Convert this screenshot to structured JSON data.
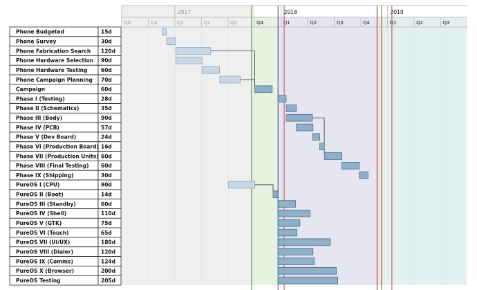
{
  "chart_data": {
    "type": "gantt",
    "timeline": {
      "years": [
        {
          "label": "2017",
          "faded": true
        },
        {
          "label": "2018",
          "faded": false
        },
        {
          "label": "2019",
          "faded": false
        }
      ],
      "quarters": [
        {
          "label": "Q3",
          "year": 2016,
          "q": 3,
          "faded": true
        },
        {
          "label": "Q4",
          "year": 2016,
          "q": 4,
          "faded": true
        },
        {
          "label": "Q1",
          "year": 2017,
          "q": 1,
          "faded": true
        },
        {
          "label": "Q2",
          "year": 2017,
          "q": 2,
          "faded": true
        },
        {
          "label": "Q3",
          "year": 2017,
          "q": 3,
          "faded": true
        },
        {
          "label": "Q4",
          "year": 2017,
          "q": 4,
          "faded": false
        },
        {
          "label": "Q1",
          "year": 2018,
          "q": 1,
          "faded": false
        },
        {
          "label": "Q2",
          "year": 2018,
          "q": 2,
          "faded": false
        },
        {
          "label": "Q3",
          "year": 2018,
          "q": 3,
          "faded": false
        },
        {
          "label": "Q4",
          "year": 2018,
          "q": 4,
          "faded": false
        },
        {
          "label": "Q1",
          "year": 2019,
          "q": 1,
          "faded": false
        },
        {
          "label": "Q2",
          "year": 2019,
          "q": 2,
          "faded": false
        },
        {
          "label": "Q3",
          "year": 2019,
          "q": 3,
          "faded": false
        }
      ],
      "markers": [
        {
          "date": "2017-09-20",
          "color": "#3a9a3a"
        },
        {
          "date": "2017-12-20",
          "color": "#3a4aa0"
        },
        {
          "date": "2018-01-10",
          "color": "#d04040"
        },
        {
          "date": "2018-11-25",
          "color": "#b02020"
        },
        {
          "date": "2018-12-10",
          "color": "#3a9a3a"
        },
        {
          "date": "2019-01-15",
          "color": "#d04040"
        }
      ],
      "regions": [
        {
          "start": "2017-09-20",
          "end": "2017-12-20",
          "color": "#e8f2e0"
        },
        {
          "start": "2017-12-20",
          "end": "2018-11-25",
          "color": "#e6e6f2"
        },
        {
          "start": "2018-11-25",
          "end": "2018-12-20",
          "color": "#f6e2e2"
        },
        {
          "start": "2018-12-20",
          "end": "2019-09-30",
          "color": "#e2f0f0"
        }
      ]
    },
    "tasks": [
      {
        "name": "Phone Budgeted",
        "duration": "15d",
        "start": "2016-11-17",
        "days": 15,
        "faded": true
      },
      {
        "name": "Phone Survey",
        "duration": "30d",
        "start": "2016-12-03",
        "days": 30,
        "faded": true
      },
      {
        "name": "Phone Fabrication Search",
        "duration": "120d",
        "start": "2017-01-03",
        "days": 120,
        "faded": true
      },
      {
        "name": "Phone Hardware Selection",
        "duration": "90d",
        "start": "2017-01-03",
        "days": 90,
        "faded": true
      },
      {
        "name": "Phone Hardware Testing",
        "duration": "60d",
        "start": "2017-04-03",
        "days": 60,
        "faded": true
      },
      {
        "name": "Phone Campaign Planning",
        "duration": "70d",
        "start": "2017-06-03",
        "days": 70,
        "faded": true
      },
      {
        "name": "Campaign",
        "duration": "60d",
        "start": "2017-10-01",
        "days": 60,
        "faded": false
      },
      {
        "name": "Phase I (Testing)",
        "duration": "28d",
        "start": "2017-12-20",
        "days": 28,
        "faded": false
      },
      {
        "name": "Phase II (Schematics)",
        "duration": "35d",
        "start": "2018-01-17",
        "days": 35,
        "faded": false
      },
      {
        "name": "Phase III (Body)",
        "duration": "90d",
        "start": "2018-01-17",
        "days": 90,
        "faded": false
      },
      {
        "name": "Phase IV (PCB)",
        "duration": "57d",
        "start": "2018-02-21",
        "days": 57,
        "faded": false
      },
      {
        "name": "Phase V (Dev Board)",
        "duration": "24d",
        "start": "2018-04-18",
        "days": 24,
        "faded": false
      },
      {
        "name": "Phase VI (Production Board)",
        "duration": "16d",
        "start": "2018-05-12",
        "days": 16,
        "faded": false
      },
      {
        "name": "Phase VII (Production Units)",
        "duration": "60d",
        "start": "2018-05-28",
        "days": 60,
        "faded": false
      },
      {
        "name": "Phase VIII (Final Testing)",
        "duration": "60d",
        "start": "2018-07-27",
        "days": 60,
        "faded": false
      },
      {
        "name": "Phase IX (Shipping)",
        "duration": "30d",
        "start": "2018-09-25",
        "days": 30,
        "faded": false
      },
      {
        "name": "PureOS I (CPU)",
        "duration": "90d",
        "start": "2017-07-03",
        "days": 90,
        "faded": true
      },
      {
        "name": "PureOS II (Boot)",
        "duration": "14d",
        "start": "2017-12-03",
        "days": 14,
        "faded": false
      },
      {
        "name": "PureOS III (Standby)",
        "duration": "60d",
        "start": "2017-12-20",
        "days": 60,
        "faded": false
      },
      {
        "name": "PureOS IV (Shell)",
        "duration": "110d",
        "start": "2017-12-20",
        "days": 110,
        "faded": false
      },
      {
        "name": "PureOS V (GTK)",
        "duration": "75d",
        "start": "2017-12-20",
        "days": 75,
        "faded": false
      },
      {
        "name": "PureOS VI (Touch)",
        "duration": "65d",
        "start": "2017-12-20",
        "days": 65,
        "faded": false
      },
      {
        "name": "PureOS VII (UI/UX)",
        "duration": "180d",
        "start": "2017-12-20",
        "days": 180,
        "faded": false
      },
      {
        "name": "PureOS VIII (Dialer)",
        "duration": "120d",
        "start": "2017-12-20",
        "days": 120,
        "faded": false
      },
      {
        "name": "PureOS IX (Comms)",
        "duration": "124d",
        "start": "2017-12-20",
        "days": 124,
        "faded": false
      },
      {
        "name": "PureOS X (Browser)",
        "duration": "200d",
        "start": "2017-12-20",
        "days": 200,
        "faded": false
      },
      {
        "name": "PureOS Testing",
        "duration": "205d",
        "start": "2017-12-20",
        "days": 205,
        "faded": false
      }
    ],
    "dependencies": [
      {
        "from": 2,
        "to": 6
      },
      {
        "from": 5,
        "to": 6
      },
      {
        "from": 9,
        "to": 13
      },
      {
        "from": 16,
        "to": 17
      }
    ],
    "colors": {
      "bar": "#8eb0c8",
      "bar_stroke": "#4a6c86",
      "bar_faded": "#c8d8e6",
      "bar_faded_stroke": "#8aa4b8",
      "past_shade": "#efefef",
      "grid": "#bfbfbf"
    }
  }
}
